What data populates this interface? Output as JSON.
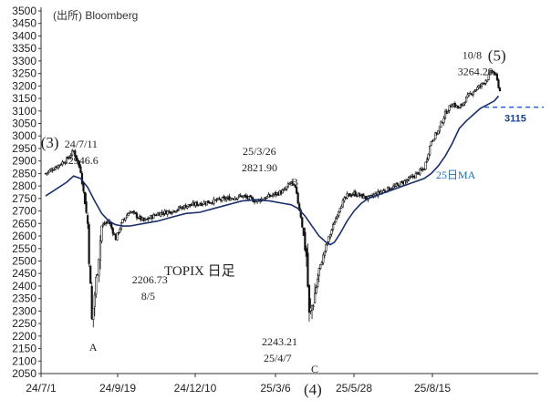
{
  "source": "(出所) Bloomberg",
  "chart_data": {
    "type": "candlestick",
    "title": "TOPIX 日足",
    "ylim": [
      2050,
      3500
    ],
    "y_ticks": [
      2050,
      2100,
      2150,
      2200,
      2250,
      2300,
      2350,
      2400,
      2450,
      2500,
      2550,
      2600,
      2650,
      2700,
      2750,
      2800,
      2850,
      2900,
      2950,
      3000,
      3050,
      3100,
      3150,
      3200,
      3250,
      3300,
      3350,
      3400,
      3450,
      3500
    ],
    "x_tick_labels": [
      "24/7/1",
      "24/9/19",
      "24/12/10",
      "25/3/6",
      "25/5/28",
      "25/8/15"
    ],
    "grid": false,
    "ma": {
      "name": "25日MA",
      "points": [
        [
          0,
          2760
        ],
        [
          15,
          2815
        ],
        [
          20,
          2840
        ],
        [
          25,
          2830
        ],
        [
          30,
          2795
        ],
        [
          35,
          2740
        ],
        [
          40,
          2690
        ],
        [
          45,
          2660
        ],
        [
          50,
          2645
        ],
        [
          55,
          2640
        ],
        [
          60,
          2640
        ],
        [
          70,
          2650
        ],
        [
          80,
          2660
        ],
        [
          90,
          2675
        ],
        [
          100,
          2690
        ],
        [
          110,
          2695
        ],
        [
          120,
          2710
        ],
        [
          130,
          2725
        ],
        [
          140,
          2740
        ],
        [
          150,
          2745
        ],
        [
          160,
          2740
        ],
        [
          170,
          2730
        ],
        [
          175,
          2725
        ],
        [
          180,
          2710
        ],
        [
          185,
          2680
        ],
        [
          190,
          2640
        ],
        [
          195,
          2600
        ],
        [
          200,
          2575
        ],
        [
          203,
          2565
        ],
        [
          206,
          2575
        ],
        [
          210,
          2610
        ],
        [
          215,
          2660
        ],
        [
          220,
          2700
        ],
        [
          225,
          2730
        ],
        [
          230,
          2750
        ],
        [
          240,
          2770
        ],
        [
          250,
          2790
        ],
        [
          260,
          2810
        ],
        [
          270,
          2830
        ],
        [
          275,
          2850
        ],
        [
          280,
          2880
        ],
        [
          285,
          2920
        ],
        [
          290,
          2970
        ],
        [
          295,
          3030
        ],
        [
          300,
          3060
        ],
        [
          305,
          3085
        ],
        [
          310,
          3110
        ],
        [
          315,
          3125
        ],
        [
          320,
          3140
        ],
        [
          323,
          3160
        ]
      ]
    },
    "candles": {
      "anchors": [
        [
          0,
          2850
        ],
        [
          15,
          2905
        ],
        [
          20,
          2940
        ],
        [
          25,
          2860
        ],
        [
          30,
          2650
        ],
        [
          33,
          2260
        ],
        [
          36,
          2420
        ],
        [
          40,
          2640
        ],
        [
          45,
          2660
        ],
        [
          50,
          2590
        ],
        [
          55,
          2660
        ],
        [
          60,
          2700
        ],
        [
          70,
          2660
        ],
        [
          80,
          2690
        ],
        [
          90,
          2700
        ],
        [
          100,
          2720
        ],
        [
          110,
          2730
        ],
        [
          120,
          2740
        ],
        [
          130,
          2750
        ],
        [
          140,
          2760
        ],
        [
          150,
          2740
        ],
        [
          160,
          2760
        ],
        [
          170,
          2780
        ],
        [
          175,
          2815
        ],
        [
          178,
          2790
        ],
        [
          182,
          2680
        ],
        [
          186,
          2520
        ],
        [
          188,
          2280
        ],
        [
          191,
          2340
        ],
        [
          195,
          2460
        ],
        [
          200,
          2560
        ],
        [
          205,
          2640
        ],
        [
          210,
          2720
        ],
        [
          215,
          2760
        ],
        [
          220,
          2770
        ],
        [
          230,
          2750
        ],
        [
          240,
          2780
        ],
        [
          250,
          2800
        ],
        [
          260,
          2830
        ],
        [
          270,
          2870
        ],
        [
          275,
          2980
        ],
        [
          280,
          3020
        ],
        [
          285,
          3090
        ],
        [
          290,
          3130
        ],
        [
          295,
          3110
        ],
        [
          300,
          3150
        ],
        [
          305,
          3180
        ],
        [
          310,
          3200
        ],
        [
          315,
          3230
        ],
        [
          318,
          3262
        ],
        [
          321,
          3240
        ],
        [
          324,
          3180
        ]
      ],
      "count": 325
    },
    "support_line": {
      "value": 3115,
      "label": "3115"
    },
    "annotations": [
      {
        "id": "w3",
        "text": "(3)",
        "x": 20,
        "y": 2946.6
      },
      {
        "id": "d1",
        "text": "24/7/11",
        "x": 20,
        "y": 2946.6
      },
      {
        "id": "v1",
        "text": "2946.6",
        "x": 20,
        "y": 2946.6
      },
      {
        "id": "pA",
        "text": "A",
        "x": 33,
        "y": 2206.73
      },
      {
        "id": "vA",
        "text": "2206.73",
        "x": 33,
        "y": 2206.73
      },
      {
        "id": "dA",
        "text": "8/5",
        "x": 33,
        "y": 2206.73
      },
      {
        "id": "pB",
        "text": "B",
        "x": 175,
        "y": 2821.9
      },
      {
        "id": "dB",
        "text": "25/3/26",
        "x": 175,
        "y": 2821.9
      },
      {
        "id": "vB",
        "text": "2821.90",
        "x": 175,
        "y": 2821.9
      },
      {
        "id": "pC",
        "text": "C",
        "x": 188,
        "y": 2243.21
      },
      {
        "id": "vC",
        "text": "2243.21",
        "x": 188,
        "y": 2243.21
      },
      {
        "id": "dC",
        "text": "25/4/7",
        "x": 188,
        "y": 2243.21
      },
      {
        "id": "w4",
        "text": "(4)",
        "x": 188,
        "y": 2243.21
      },
      {
        "id": "w5",
        "text": "(5)",
        "x": 318,
        "y": 3264.29
      },
      {
        "id": "d5",
        "text": "10/8",
        "x": 318,
        "y": 3264.29
      },
      {
        "id": "v5",
        "text": "3264.29",
        "x": 318,
        "y": 3264.29
      }
    ]
  }
}
